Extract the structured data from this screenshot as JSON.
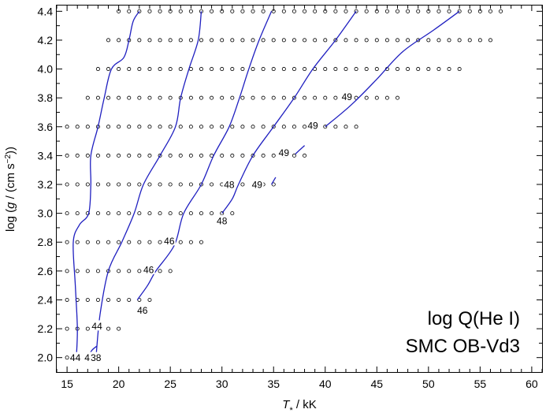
{
  "chart_data": {
    "type": "scatter",
    "title": "",
    "xlabel": {
      "symbol": "T",
      "subscript": "*",
      "unit": " / kK"
    },
    "ylabel": {
      "prefix": "log (",
      "symbol": "g",
      "mid": " / (cm s",
      "sup": "−2",
      "suffix": "))"
    },
    "xlim": [
      14,
      61
    ],
    "ylim": [
      1.9,
      4.44
    ],
    "x_ticks": [
      "15",
      "20",
      "25",
      "30",
      "35",
      "40",
      "45",
      "50",
      "55",
      "60"
    ],
    "y_ticks": [
      "2.0",
      "2.2",
      "2.4",
      "2.6",
      "2.8",
      "3.0",
      "3.2",
      "3.4",
      "3.6",
      "3.8",
      "4.0",
      "4.2",
      "4.4"
    ],
    "annotations": [
      "log Q(He I)",
      "SMC OB-Vd3"
    ],
    "colors": {
      "grid_points": "#000000",
      "contours": "#1f1fc0"
    },
    "grid_points": [
      {
        "logg": 4.4,
        "teff_min": 20,
        "teff_max": 57
      },
      {
        "logg": 4.2,
        "teff_min": 19,
        "teff_max": 56
      },
      {
        "logg": 4.0,
        "teff_min": 18,
        "teff_max": 53
      },
      {
        "logg": 3.8,
        "teff_min": 17,
        "teff_max": 47
      },
      {
        "logg": 3.6,
        "teff_min": 15,
        "teff_max": 43
      },
      {
        "logg": 3.4,
        "teff_min": 15,
        "teff_max": 38
      },
      {
        "logg": 3.2,
        "teff_min": 15,
        "teff_max": 35
      },
      {
        "logg": 3.0,
        "teff_min": 15,
        "teff_max": 31
      },
      {
        "logg": 2.8,
        "teff_min": 15,
        "teff_max": 28
      },
      {
        "logg": 2.6,
        "teff_min": 15,
        "teff_max": 25
      },
      {
        "logg": 2.4,
        "teff_min": 15,
        "teff_max": 23
      },
      {
        "logg": 2.2,
        "teff_min": 15,
        "teff_max": 20
      },
      {
        "logg": 2.0,
        "teff_min": 15,
        "teff_max": 18
      }
    ],
    "contours": [
      {
        "level": "44",
        "points": [
          [
            15.9,
            2.0
          ],
          [
            16.0,
            2.2
          ],
          [
            15.8,
            2.5
          ],
          [
            15.6,
            2.8
          ],
          [
            16.2,
            2.92
          ],
          [
            17.1,
            3.0
          ],
          [
            17.3,
            3.2
          ],
          [
            17.3,
            3.4
          ],
          [
            18.0,
            3.6
          ],
          [
            18.6,
            3.8
          ],
          [
            19.3,
            4.0
          ],
          [
            20.5,
            4.08
          ],
          [
            21.0,
            4.2
          ],
          [
            21.4,
            4.33
          ],
          [
            22.0,
            4.4
          ]
        ]
      },
      {
        "level": "44",
        "points": [
          [
            17.0,
            2.0
          ],
          [
            17.4,
            2.05
          ],
          [
            17.9,
            2.08
          ]
        ]
      },
      {
        "level": "46",
        "points": [
          [
            17.8,
            2.0
          ],
          [
            18.2,
            2.3
          ],
          [
            19.0,
            2.6
          ],
          [
            20.3,
            2.8
          ],
          [
            21.5,
            3.0
          ],
          [
            22.4,
            3.2
          ],
          [
            24.0,
            3.4
          ],
          [
            25.5,
            3.6
          ],
          [
            26.0,
            3.8
          ],
          [
            26.8,
            4.0
          ],
          [
            27.7,
            4.2
          ],
          [
            28.0,
            4.4
          ]
        ]
      },
      {
        "level": "46",
        "points": [
          [
            21.8,
            2.4
          ],
          [
            22.8,
            2.5
          ],
          [
            23.6,
            2.6
          ],
          [
            25.4,
            2.78
          ],
          [
            26.3,
            3.0
          ],
          [
            28.0,
            3.2
          ],
          [
            29.2,
            3.4
          ],
          [
            30.7,
            3.6
          ],
          [
            31.7,
            3.8
          ],
          [
            32.6,
            4.0
          ],
          [
            33.6,
            4.2
          ],
          [
            34.8,
            4.4
          ]
        ]
      },
      {
        "level": "48",
        "points": [
          [
            30.0,
            3.0
          ],
          [
            31.0,
            3.1
          ],
          [
            31.6,
            3.2
          ],
          [
            33.0,
            3.4
          ],
          [
            35.0,
            3.6
          ],
          [
            37.0,
            3.8
          ],
          [
            38.8,
            4.0
          ],
          [
            41.0,
            4.2
          ],
          [
            43.0,
            4.4
          ]
        ]
      },
      {
        "level": "48",
        "points": [
          [
            34.8,
            3.2
          ],
          [
            35.2,
            3.25
          ]
        ]
      },
      {
        "level": "49",
        "points": [
          [
            37.1,
            3.41
          ],
          [
            38.0,
            3.47
          ]
        ]
      },
      {
        "level": "49",
        "points": [
          [
            40.0,
            3.6
          ],
          [
            42.5,
            3.75
          ],
          [
            45.0,
            3.93
          ],
          [
            47.5,
            4.12
          ],
          [
            50.5,
            4.27
          ],
          [
            53.0,
            4.4
          ]
        ]
      }
    ],
    "contour_labels": [
      {
        "text": "44",
        "x": 15.8,
        "y": 2.0
      },
      {
        "text": "43",
        "x": 17.2,
        "y": 2.0
      },
      {
        "text": "38",
        "x": 17.8,
        "y": 2.0
      },
      {
        "text": "44",
        "x": 17.9,
        "y": 2.22
      },
      {
        "text": "46",
        "x": 22.3,
        "y": 2.33
      },
      {
        "text": "46",
        "x": 22.9,
        "y": 2.61
      },
      {
        "text": "46",
        "x": 24.9,
        "y": 2.81
      },
      {
        "text": "48",
        "x": 30.0,
        "y": 2.95
      },
      {
        "text": "48",
        "x": 30.7,
        "y": 3.2
      },
      {
        "text": "49",
        "x": 33.4,
        "y": 3.2
      },
      {
        "text": "49",
        "x": 36.0,
        "y": 3.42
      },
      {
        "text": "49",
        "x": 38.8,
        "y": 3.61
      },
      {
        "text": "49",
        "x": 42.1,
        "y": 3.81
      }
    ]
  }
}
